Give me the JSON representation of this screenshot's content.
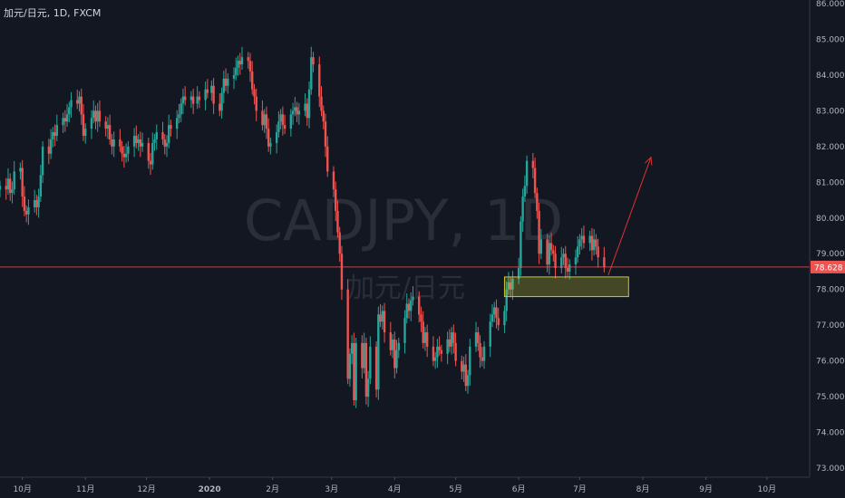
{
  "header": {
    "title": "加元/日元, 1D, FXCM"
  },
  "watermark": {
    "main": "CADJPY, 1D",
    "sub": "加元/日元"
  },
  "colors": {
    "background": "#131722",
    "up": "#26a69a",
    "down": "#ef5350",
    "price_line": "#ef5350",
    "zone": "#c8c832",
    "arrow": "#e03030"
  },
  "chart_data": {
    "type": "candlestick",
    "title": "加元/日元, 1D, FXCM",
    "y_ticks": [
      "86.000",
      "85.000",
      "84.000",
      "83.000",
      "82.000",
      "81.000",
      "80.000",
      "79.000",
      "78.000",
      "77.000",
      "76.000",
      "75.000",
      "74.000",
      "73.000"
    ],
    "ylim": [
      73.0,
      86.0
    ],
    "x_ticks": [
      "10月",
      "11月",
      "12月",
      "2020",
      "2月",
      "3月",
      "4月",
      "5月",
      "6月",
      "7月",
      "8月",
      "9月",
      "10月"
    ],
    "x_range": [
      "2019-09-20",
      "2020-10-22"
    ],
    "current_price": {
      "value": 78.628,
      "label": "78.628"
    },
    "support_zone": {
      "start": "2020-05-25",
      "end": "2020-07-25",
      "low": 77.8,
      "high": 78.35
    },
    "projection_arrow": {
      "from": {
        "date": "2020-07-15",
        "price": 78.4
      },
      "to": {
        "date": "2020-08-05",
        "price": 81.7
      }
    },
    "closes": [
      [
        "2019-09-20",
        80.9
      ],
      [
        "2019-09-23",
        80.8
      ],
      [
        "2019-09-24",
        81.1
      ],
      [
        "2019-09-25",
        80.7
      ],
      [
        "2019-09-26",
        80.8
      ],
      [
        "2019-09-27",
        81.3
      ],
      [
        "2019-09-30",
        81.4
      ],
      [
        "2019-10-01",
        80.6
      ],
      [
        "2019-10-02",
        80.2
      ],
      [
        "2019-10-03",
        80.1
      ],
      [
        "2019-10-04",
        80.3
      ],
      [
        "2019-10-07",
        80.5
      ],
      [
        "2019-10-08",
        80.3
      ],
      [
        "2019-10-09",
        80.6
      ],
      [
        "2019-10-10",
        81.2
      ],
      [
        "2019-10-11",
        82.0
      ],
      [
        "2019-10-14",
        81.8
      ],
      [
        "2019-10-15",
        82.2
      ],
      [
        "2019-10-16",
        82.4
      ],
      [
        "2019-10-17",
        82.3
      ],
      [
        "2019-10-18",
        82.6
      ],
      [
        "2019-10-21",
        82.8
      ],
      [
        "2019-10-22",
        82.7
      ],
      [
        "2019-10-23",
        82.9
      ],
      [
        "2019-10-24",
        83.1
      ],
      [
        "2019-10-25",
        83.3
      ],
      [
        "2019-10-28",
        83.2
      ],
      [
        "2019-10-29",
        83.4
      ],
      [
        "2019-10-30",
        82.9
      ],
      [
        "2019-10-31",
        82.3
      ],
      [
        "2019-11-01",
        82.5
      ],
      [
        "2019-11-04",
        82.8
      ],
      [
        "2019-11-05",
        83.0
      ],
      [
        "2019-11-06",
        82.7
      ],
      [
        "2019-11-07",
        83.0
      ],
      [
        "2019-11-08",
        82.7
      ],
      [
        "2019-11-11",
        82.5
      ],
      [
        "2019-11-12",
        82.6
      ],
      [
        "2019-11-13",
        82.2
      ],
      [
        "2019-11-14",
        82.0
      ],
      [
        "2019-11-15",
        82.2
      ],
      [
        "2019-11-18",
        82.0
      ],
      [
        "2019-11-19",
        81.8
      ],
      [
        "2019-11-20",
        81.7
      ],
      [
        "2019-11-21",
        81.8
      ],
      [
        "2019-11-22",
        82.0
      ],
      [
        "2019-11-25",
        82.3
      ],
      [
        "2019-11-26",
        82.1
      ],
      [
        "2019-11-27",
        82.2
      ],
      [
        "2019-11-28",
        82.0
      ],
      [
        "2019-11-29",
        82.1
      ],
      [
        "2019-12-02",
        81.6
      ],
      [
        "2019-12-03",
        81.5
      ],
      [
        "2019-12-04",
        82.1
      ],
      [
        "2019-12-05",
        82.2
      ],
      [
        "2019-12-06",
        82.4
      ],
      [
        "2019-12-09",
        82.2
      ],
      [
        "2019-12-10",
        82.0
      ],
      [
        "2019-12-11",
        82.1
      ],
      [
        "2019-12-12",
        82.6
      ],
      [
        "2019-12-13",
        82.5
      ],
      [
        "2019-12-16",
        82.8
      ],
      [
        "2019-12-17",
        82.9
      ],
      [
        "2019-12-18",
        83.2
      ],
      [
        "2019-12-19",
        83.4
      ],
      [
        "2019-12-20",
        83.3
      ],
      [
        "2019-12-23",
        83.4
      ],
      [
        "2019-12-24",
        83.2
      ],
      [
        "2019-12-26",
        83.4
      ],
      [
        "2019-12-27",
        83.3
      ],
      [
        "2019-12-30",
        83.6
      ],
      [
        "2019-12-31",
        83.5
      ],
      [
        "2020-01-02",
        83.7
      ],
      [
        "2020-01-03",
        83.2
      ],
      [
        "2020-01-06",
        83.0
      ],
      [
        "2020-01-07",
        83.5
      ],
      [
        "2020-01-08",
        83.9
      ],
      [
        "2020-01-09",
        83.7
      ],
      [
        "2020-01-10",
        83.9
      ],
      [
        "2020-01-13",
        84.0
      ],
      [
        "2020-01-14",
        84.2
      ],
      [
        "2020-01-15",
        84.4
      ],
      [
        "2020-01-16",
        84.3
      ],
      [
        "2020-01-17",
        84.5
      ],
      [
        "2020-01-20",
        84.4
      ],
      [
        "2020-01-21",
        84.1
      ],
      [
        "2020-01-22",
        83.6
      ],
      [
        "2020-01-23",
        83.4
      ],
      [
        "2020-01-24",
        83.0
      ],
      [
        "2020-01-27",
        82.6
      ],
      [
        "2020-01-28",
        82.9
      ],
      [
        "2020-01-29",
        82.5
      ],
      [
        "2020-01-30",
        82.0
      ],
      [
        "2020-01-31",
        82.1
      ],
      [
        "2020-02-03",
        82.4
      ],
      [
        "2020-02-04",
        82.7
      ],
      [
        "2020-02-05",
        82.9
      ],
      [
        "2020-02-06",
        82.6
      ],
      [
        "2020-02-07",
        82.5
      ],
      [
        "2020-02-10",
        82.9
      ],
      [
        "2020-02-11",
        83.0
      ],
      [
        "2020-02-12",
        83.1
      ],
      [
        "2020-02-13",
        82.9
      ],
      [
        "2020-02-14",
        83.0
      ],
      [
        "2020-02-17",
        83.2
      ],
      [
        "2020-02-18",
        82.8
      ],
      [
        "2020-02-19",
        83.6
      ],
      [
        "2020-02-20",
        84.5
      ],
      [
        "2020-02-21",
        84.3
      ],
      [
        "2020-02-24",
        83.4
      ],
      [
        "2020-02-25",
        83.0
      ],
      [
        "2020-02-26",
        82.7
      ],
      [
        "2020-02-27",
        82.0
      ],
      [
        "2020-02-28",
        81.3
      ],
      [
        "2020-03-02",
        80.8
      ],
      [
        "2020-03-03",
        80.2
      ],
      [
        "2020-03-04",
        79.6
      ],
      [
        "2020-03-05",
        79.0
      ],
      [
        "2020-03-06",
        78.0
      ],
      [
        "2020-03-09",
        75.5
      ],
      [
        "2020-03-10",
        76.2
      ],
      [
        "2020-03-11",
        76.5
      ],
      [
        "2020-03-12",
        74.9
      ],
      [
        "2020-03-13",
        76.5
      ],
      [
        "2020-03-16",
        75.8
      ],
      [
        "2020-03-17",
        76.5
      ],
      [
        "2020-03-18",
        75.0
      ],
      [
        "2020-03-19",
        75.5
      ],
      [
        "2020-03-20",
        76.4
      ],
      [
        "2020-03-23",
        75.2
      ],
      [
        "2020-03-24",
        77.3
      ],
      [
        "2020-03-25",
        77.1
      ],
      [
        "2020-03-26",
        77.4
      ],
      [
        "2020-03-27",
        76.8
      ],
      [
        "2020-03-30",
        76.3
      ],
      [
        "2020-03-31",
        76.6
      ],
      [
        "2020-04-01",
        75.8
      ],
      [
        "2020-04-02",
        76.3
      ],
      [
        "2020-04-03",
        76.5
      ],
      [
        "2020-04-06",
        77.2
      ],
      [
        "2020-04-07",
        77.6
      ],
      [
        "2020-04-08",
        77.4
      ],
      [
        "2020-04-09",
        77.7
      ],
      [
        "2020-04-10",
        77.8
      ],
      [
        "2020-04-13",
        77.3
      ],
      [
        "2020-04-14",
        77.1
      ],
      [
        "2020-04-15",
        76.5
      ],
      [
        "2020-04-16",
        76.8
      ],
      [
        "2020-04-17",
        76.4
      ],
      [
        "2020-04-20",
        76.0
      ],
      [
        "2020-04-21",
        76.1
      ],
      [
        "2020-04-22",
        76.4
      ],
      [
        "2020-04-23",
        76.3
      ],
      [
        "2020-04-24",
        76.2
      ],
      [
        "2020-04-27",
        76.6
      ],
      [
        "2020-04-28",
        76.4
      ],
      [
        "2020-04-29",
        76.8
      ],
      [
        "2020-04-30",
        76.5
      ],
      [
        "2020-05-01",
        76.0
      ],
      [
        "2020-05-04",
        75.7
      ],
      [
        "2020-05-05",
        75.9
      ],
      [
        "2020-05-06",
        75.3
      ],
      [
        "2020-05-07",
        75.6
      ],
      [
        "2020-05-08",
        76.4
      ],
      [
        "2020-05-11",
        76.8
      ],
      [
        "2020-05-12",
        76.5
      ],
      [
        "2020-05-13",
        76.1
      ],
      [
        "2020-05-14",
        76.0
      ],
      [
        "2020-05-15",
        76.4
      ],
      [
        "2020-05-18",
        77.1
      ],
      [
        "2020-05-19",
        77.3
      ],
      [
        "2020-05-20",
        77.5
      ],
      [
        "2020-05-21",
        77.2
      ],
      [
        "2020-05-22",
        77.0
      ],
      [
        "2020-05-25",
        77.4
      ],
      [
        "2020-05-26",
        78.0
      ],
      [
        "2020-05-27",
        78.2
      ],
      [
        "2020-05-28",
        78.0
      ],
      [
        "2020-05-29",
        78.3
      ],
      [
        "2020-06-01",
        78.6
      ],
      [
        "2020-06-02",
        79.9
      ],
      [
        "2020-06-03",
        80.6
      ],
      [
        "2020-06-04",
        80.9
      ],
      [
        "2020-06-05",
        81.6
      ],
      [
        "2020-06-08",
        81.4
      ],
      [
        "2020-06-09",
        80.7
      ],
      [
        "2020-06-10",
        80.2
      ],
      [
        "2020-06-11",
        79.0
      ],
      [
        "2020-06-12",
        79.4
      ],
      [
        "2020-06-15",
        78.7
      ],
      [
        "2020-06-16",
        79.3
      ],
      [
        "2020-06-17",
        79.1
      ],
      [
        "2020-06-18",
        79.0
      ],
      [
        "2020-06-19",
        78.6
      ],
      [
        "2020-06-22",
        78.9
      ],
      [
        "2020-06-23",
        79.0
      ],
      [
        "2020-06-24",
        78.6
      ],
      [
        "2020-06-25",
        78.5
      ],
      [
        "2020-06-26",
        78.7
      ],
      [
        "2020-06-29",
        78.9
      ],
      [
        "2020-06-30",
        79.2
      ],
      [
        "2020-07-01",
        79.4
      ],
      [
        "2020-07-02",
        79.5
      ],
      [
        "2020-07-03",
        79.3
      ],
      [
        "2020-07-06",
        79.5
      ],
      [
        "2020-07-07",
        79.1
      ],
      [
        "2020-07-08",
        79.4
      ],
      [
        "2020-07-09",
        79.2
      ],
      [
        "2020-07-10",
        78.9
      ],
      [
        "2020-07-13",
        78.628
      ]
    ]
  }
}
